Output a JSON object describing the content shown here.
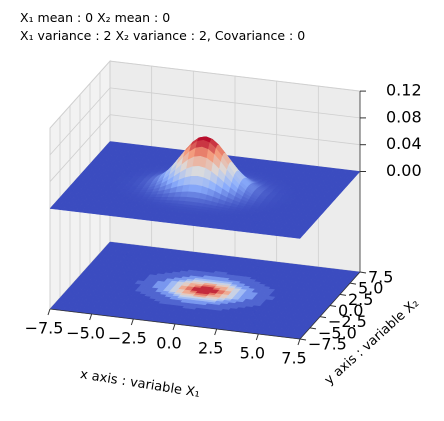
{
  "chart_data": {
    "type": "surface3d",
    "title": [
      "X₁ mean : 0 X₂ mean : 0",
      "X₁ variance : 2 X₂ variance : 2, Covariance : 0"
    ],
    "mean": [
      0,
      0
    ],
    "variance": [
      2,
      2
    ],
    "covariance": 0,
    "colormap": "coolwarm",
    "xlabel": "x axis : variable X₁",
    "ylabel": "y axis : variable X₂",
    "xlim": [
      -7.5,
      7.5
    ],
    "ylim": [
      -7.5,
      7.5
    ],
    "zlim": [
      -0.15,
      0.12
    ],
    "xticks": [
      {
        "value": -7.5,
        "label": "−7.5"
      },
      {
        "value": -5,
        "label": "−5.0"
      },
      {
        "value": -2.5,
        "label": "−2.5"
      },
      {
        "value": 0,
        "label": "0.0"
      },
      2.5,
      {
        "value": 5,
        "label": "5.0"
      },
      7.5
    ],
    "yticks": [
      {
        "value": -7.5,
        "label": "−7.5"
      },
      {
        "value": -5,
        "label": "−5.0"
      },
      {
        "value": -2.5,
        "label": "−2.5"
      },
      {
        "value": 0,
        "label": "0.0"
      },
      2.5,
      {
        "value": 5,
        "label": "5.0"
      },
      7.5
    ],
    "zticks": [
      {
        "value": 0,
        "label": "0.00"
      },
      {
        "value": 0.04,
        "label": "0.04"
      },
      {
        "value": 0.08,
        "label": "0.08"
      },
      {
        "value": 0.12,
        "label": "0.12"
      }
    ]
  }
}
